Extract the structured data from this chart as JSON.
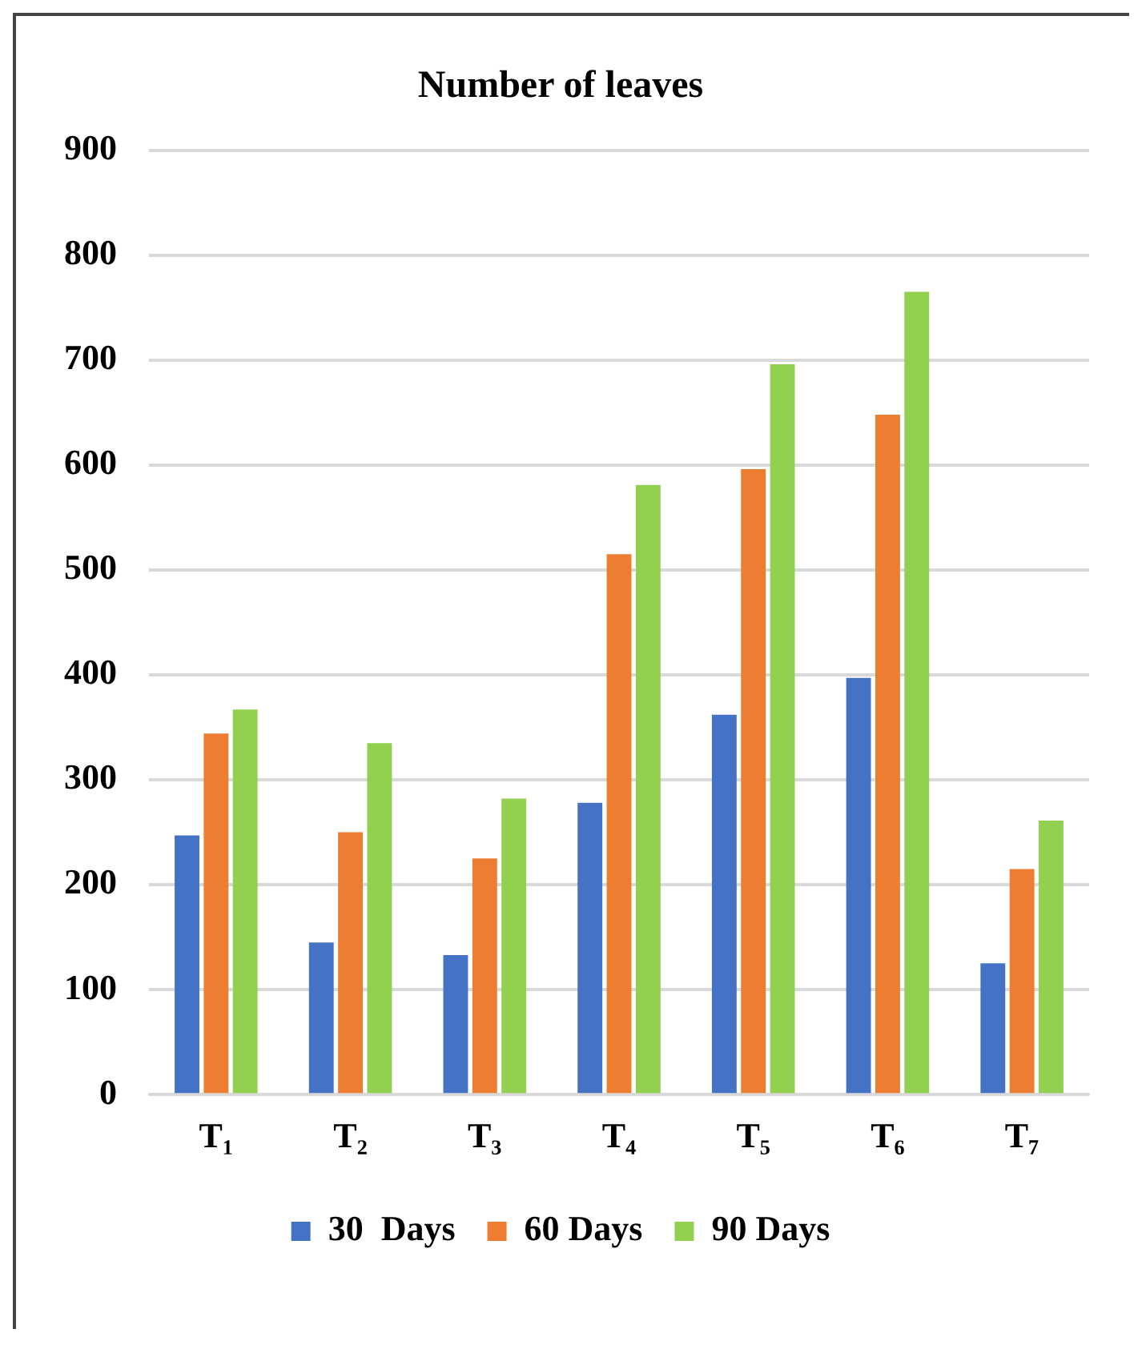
{
  "chart_data": {
    "type": "bar",
    "title": "Number of leaves",
    "categories": [
      "T₁",
      "T₂",
      "T₃",
      "T₄",
      "T₅",
      "T₆",
      "T₇"
    ],
    "series": [
      {
        "name": "30  Days",
        "color": "#4472c4",
        "values": [
          247,
          145,
          133,
          278,
          362,
          397,
          125
        ]
      },
      {
        "name": "60 Days",
        "color": "#ed7d31",
        "values": [
          344,
          250,
          225,
          515,
          596,
          648,
          215
        ]
      },
      {
        "name": "90 Days",
        "color": "#92d050",
        "values": [
          367,
          335,
          282,
          581,
          696,
          765,
          261
        ]
      }
    ],
    "ylim": [
      0,
      900
    ],
    "yticks": [
      0,
      100,
      200,
      300,
      400,
      500,
      600,
      700,
      800,
      900
    ],
    "grid": "y",
    "legend": "bottom"
  }
}
